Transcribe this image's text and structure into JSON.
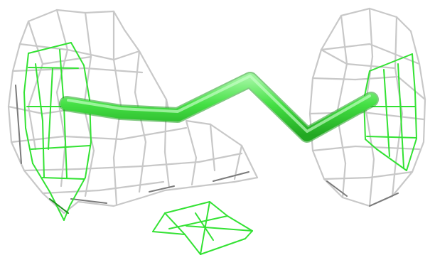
{
  "scene": {
    "background": "#ffffff",
    "colors": {
      "density_mesh": "#c8c8c8",
      "difference_mesh": "#33e233",
      "ligand_stick": "#3fe23f"
    },
    "objects": [
      "grey-density-mesh-left",
      "grey-density-mesh-right",
      "green-density-mesh",
      "ligand-stick-model"
    ]
  }
}
